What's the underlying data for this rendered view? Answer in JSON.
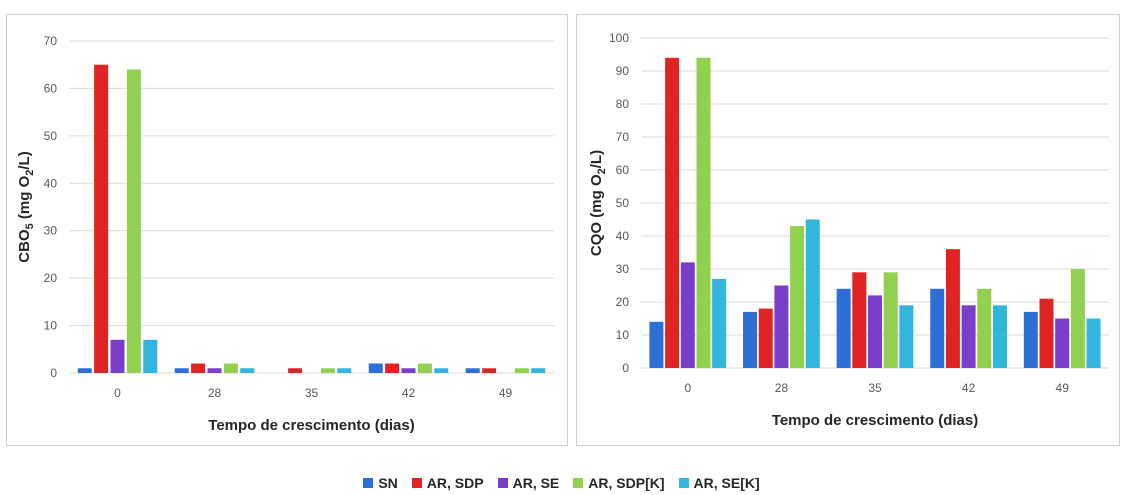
{
  "legend": [
    "SN",
    "AR, SDP",
    "AR, SE",
    "AR, SDP[K]",
    "AR, SE[K]"
  ],
  "colors": [
    "#2e6fd6",
    "#e02323",
    "#7a3fc8",
    "#92d050",
    "#33b6dd"
  ],
  "chart_data": [
    {
      "type": "bar",
      "categories": [
        "0",
        "28",
        "35",
        "42",
        "49"
      ],
      "xlabel": "Tempo de crescimento (dias)",
      "ylabel_main": "CBO",
      "ylabel_sub": "5",
      "ylabel_rest_a": " (mg O",
      "ylabel_sub2": "2",
      "ylabel_rest_b": "/L)",
      "ylim": [
        0,
        70
      ],
      "yticks": [
        0,
        10,
        20,
        30,
        40,
        50,
        60,
        70
      ],
      "grid": true,
      "series": [
        {
          "name": "SN",
          "values": [
            1,
            1,
            0,
            2,
            1
          ]
        },
        {
          "name": "AR, SDP",
          "values": [
            65,
            2,
            1,
            2,
            1
          ]
        },
        {
          "name": "AR, SE",
          "values": [
            7,
            1,
            0,
            1,
            0
          ]
        },
        {
          "name": "AR, SDP[K]",
          "values": [
            64,
            2,
            1,
            2,
            1
          ]
        },
        {
          "name": "AR, SE[K]",
          "values": [
            7,
            1,
            1,
            1,
            1
          ]
        }
      ]
    },
    {
      "type": "bar",
      "categories": [
        "0",
        "28",
        "35",
        "42",
        "49"
      ],
      "xlabel": "Tempo de crescimento (dias)",
      "ylabel_main": "CQO",
      "ylabel_sub": "",
      "ylabel_rest_a": " (mg O",
      "ylabel_sub2": "2",
      "ylabel_rest_b": "/L)",
      "ylim": [
        0,
        100
      ],
      "yticks": [
        0,
        10,
        20,
        30,
        40,
        50,
        60,
        70,
        80,
        90,
        100
      ],
      "grid": true,
      "series": [
        {
          "name": "SN",
          "values": [
            14,
            17,
            24,
            24,
            17
          ]
        },
        {
          "name": "AR, SDP",
          "values": [
            94,
            18,
            29,
            36,
            21
          ]
        },
        {
          "name": "AR, SE",
          "values": [
            32,
            25,
            22,
            19,
            15
          ]
        },
        {
          "name": "AR, SDP[K]",
          "values": [
            94,
            43,
            29,
            24,
            30
          ]
        },
        {
          "name": "AR, SE[K]",
          "values": [
            27,
            45,
            19,
            19,
            15
          ]
        }
      ]
    }
  ]
}
